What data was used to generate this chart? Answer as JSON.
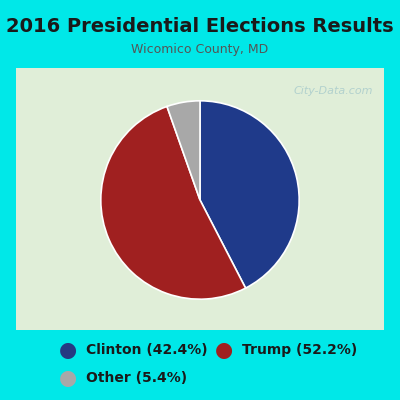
{
  "title": "2016 Presidential Elections Results",
  "subtitle": "Wicomico County, MD",
  "slices": [
    42.4,
    52.2,
    5.4
  ],
  "labels": [
    "Clinton",
    "Trump",
    "Other"
  ],
  "percentages": [
    "42.4%",
    "52.2%",
    "5.4%"
  ],
  "colors": [
    "#1f3a8a",
    "#a02020",
    "#a8a8a8"
  ],
  "legend_colors": [
    "#253a82",
    "#a02020",
    "#a8a8a8"
  ],
  "background_outer": "#00e8e8",
  "background_inner": "#e0eed8",
  "title_color": "#1a1a1a",
  "subtitle_color": "#555555",
  "title_fontsize": 14,
  "subtitle_fontsize": 9,
  "legend_fontsize": 10,
  "watermark": "City-Data.com"
}
